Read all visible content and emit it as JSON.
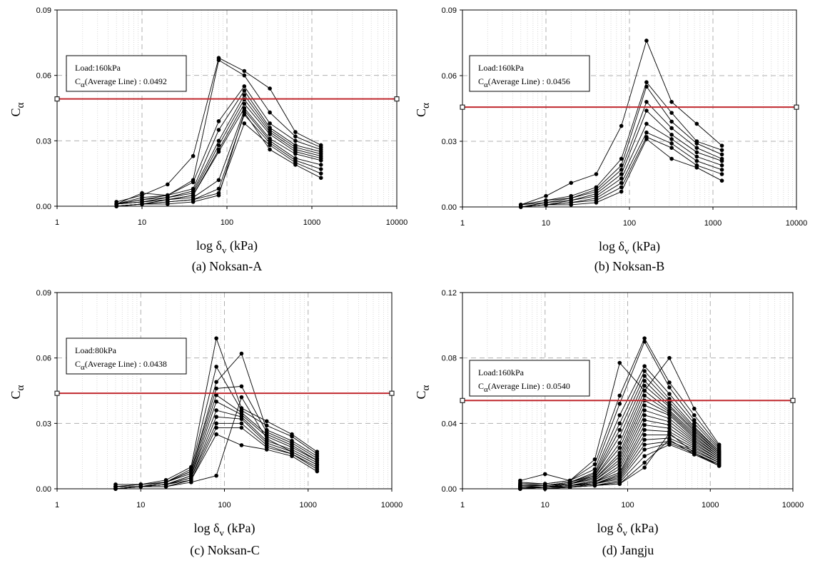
{
  "panels": [
    {
      "caption": "(a) Noksan-A",
      "ylabel_main": "C",
      "ylabel_sub": "α",
      "xlabel_prefix": "log δ",
      "xlabel_sub": "v",
      "xlabel_suffix": " (kPa)",
      "legend_load": "Load:160kPa",
      "legend_c": "C",
      "legend_c_sub": "α",
      "legend_avg": "(Average Line) : 0.0492",
      "chart_data": {
        "type": "line",
        "xscale": "log",
        "xlim": [
          1,
          10000
        ],
        "ylim": [
          0,
          0.09
        ],
        "yticks": [
          "0.00",
          "0.03",
          "0.06",
          "0.09"
        ],
        "xticks": [
          "1",
          "10",
          "100",
          "1000",
          "10000"
        ],
        "grid": true,
        "average_line": 0.0492,
        "x": [
          5,
          10,
          20,
          40,
          80,
          160,
          320,
          640,
          1280
        ],
        "series": [
          {
            "values": [
              0.002,
              0.005,
              0.01,
              0.023,
              0.068,
              0.062,
              0.054,
              0.034,
              0.028
            ]
          },
          {
            "values": [
              0.001,
              0.006,
              0.005,
              0.012,
              0.067,
              0.06,
              0.043,
              0.032,
              0.027
            ]
          },
          {
            "values": [
              0.001,
              0.004,
              0.005,
              0.011,
              0.039,
              0.055,
              0.038,
              0.03,
              0.026
            ]
          },
          {
            "values": [
              0.001,
              0.003,
              0.005,
              0.008,
              0.035,
              0.053,
              0.036,
              0.028,
              0.025
            ]
          },
          {
            "values": [
              0.001,
              0.003,
              0.004,
              0.007,
              0.03,
              0.051,
              0.035,
              0.027,
              0.024
            ]
          },
          {
            "values": [
              0.001,
              0.002,
              0.004,
              0.006,
              0.028,
              0.049,
              0.034,
              0.026,
              0.023
            ]
          },
          {
            "values": [
              0.001,
              0.002,
              0.003,
              0.005,
              0.026,
              0.047,
              0.033,
              0.025,
              0.022
            ]
          },
          {
            "values": [
              0.001,
              0.002,
              0.003,
              0.005,
              0.025,
              0.045,
              0.031,
              0.024,
              0.021
            ]
          },
          {
            "values": [
              0.0,
              0.001,
              0.003,
              0.004,
              0.012,
              0.044,
              0.03,
              0.022,
              0.019
            ]
          },
          {
            "values": [
              0.0,
              0.001,
              0.002,
              0.003,
              0.008,
              0.042,
              0.029,
              0.021,
              0.017
            ]
          },
          {
            "values": [
              0.0,
              0.001,
              0.002,
              0.003,
              0.006,
              0.038,
              0.028,
              0.02,
              0.015
            ]
          },
          {
            "values": [
              0.0,
              0.001,
              0.001,
              0.002,
              0.005,
              0.043,
              0.026,
              0.019,
              0.013
            ]
          }
        ]
      }
    },
    {
      "caption": "(b) Noksan-B",
      "ylabel_main": "C",
      "ylabel_sub": "α",
      "xlabel_prefix": "log δ",
      "xlabel_sub": "v",
      "xlabel_suffix": " (kPa)",
      "legend_load": "Load:160kPa",
      "legend_c": "C",
      "legend_c_sub": "α",
      "legend_avg": "(Average Line) : 0.0456",
      "chart_data": {
        "type": "line",
        "xscale": "log",
        "xlim": [
          1,
          10000
        ],
        "ylim": [
          0,
          0.09
        ],
        "yticks": [
          "0.00",
          "0.03",
          "0.06",
          "0.09"
        ],
        "xticks": [
          "1",
          "10",
          "100",
          "1000",
          "10000"
        ],
        "grid": true,
        "average_line": 0.0456,
        "x": [
          5,
          10,
          20,
          40,
          80,
          160,
          320,
          640,
          1280
        ],
        "series": [
          {
            "values": [
              0.001,
              0.005,
              0.011,
              0.015,
              0.037,
              0.076,
              0.048,
              0.038,
              0.028
            ]
          },
          {
            "values": [
              0.001,
              0.003,
              0.005,
              0.009,
              0.022,
              0.057,
              0.043,
              0.03,
              0.026
            ]
          },
          {
            "values": [
              0.001,
              0.003,
              0.004,
              0.008,
              0.019,
              0.055,
              0.039,
              0.029,
              0.024
            ]
          },
          {
            "values": [
              0.001,
              0.002,
              0.004,
              0.007,
              0.017,
              0.048,
              0.036,
              0.027,
              0.022
            ]
          },
          {
            "values": [
              0.0,
              0.002,
              0.003,
              0.006,
              0.015,
              0.044,
              0.033,
              0.025,
              0.021
            ]
          },
          {
            "values": [
              0.0,
              0.001,
              0.003,
              0.005,
              0.013,
              0.038,
              0.031,
              0.023,
              0.019
            ]
          },
          {
            "values": [
              0.0,
              0.001,
              0.002,
              0.004,
              0.011,
              0.034,
              0.029,
              0.021,
              0.017
            ]
          },
          {
            "values": [
              0.0,
              0.001,
              0.002,
              0.003,
              0.009,
              0.032,
              0.027,
              0.019,
              0.015
            ]
          },
          {
            "values": [
              0.0,
              0.001,
              0.001,
              0.002,
              0.007,
              0.031,
              0.022,
              0.018,
              0.012
            ]
          }
        ]
      }
    },
    {
      "caption": "(c) Noksan-C",
      "ylabel_main": "C",
      "ylabel_sub": "α",
      "xlabel_prefix": "log δ",
      "xlabel_sub": "v",
      "xlabel_suffix": " (kPa)",
      "legend_load": "Load:80kPa",
      "legend_c": "C",
      "legend_c_sub": "α",
      "legend_avg": "(Average Line) : 0.0438",
      "chart_data": {
        "type": "line",
        "xscale": "log",
        "xlim": [
          1,
          10000
        ],
        "ylim": [
          0,
          0.09
        ],
        "yticks": [
          "0.00",
          "0.03",
          "0.06",
          "0.09"
        ],
        "xticks": [
          "1",
          "10",
          "100",
          "1000",
          "10000"
        ],
        "grid": true,
        "average_line": 0.0438,
        "x": [
          5,
          10,
          20,
          40,
          80,
          160,
          320,
          640,
          1280
        ],
        "series": [
          {
            "values": [
              0.002,
              0.002,
              0.004,
              0.01,
              0.069,
              0.037,
              0.031,
              0.025,
              0.017
            ]
          },
          {
            "values": [
              0.001,
              0.002,
              0.003,
              0.009,
              0.056,
              0.036,
              0.029,
              0.024,
              0.016
            ]
          },
          {
            "values": [
              0.001,
              0.002,
              0.003,
              0.008,
              0.049,
              0.062,
              0.027,
              0.022,
              0.015
            ]
          },
          {
            "values": [
              0.001,
              0.001,
              0.003,
              0.008,
              0.046,
              0.047,
              0.026,
              0.021,
              0.014
            ]
          },
          {
            "values": [
              0.001,
              0.001,
              0.003,
              0.007,
              0.043,
              0.035,
              0.025,
              0.02,
              0.013
            ]
          },
          {
            "values": [
              0.001,
              0.001,
              0.002,
              0.006,
              0.04,
              0.034,
              0.024,
              0.019,
              0.013
            ]
          },
          {
            "values": [
              0.001,
              0.001,
              0.002,
              0.006,
              0.036,
              0.033,
              0.022,
              0.018,
              0.012
            ]
          },
          {
            "values": [
              0.0,
              0.001,
              0.002,
              0.005,
              0.033,
              0.032,
              0.021,
              0.017,
              0.011
            ]
          },
          {
            "values": [
              0.0,
              0.001,
              0.002,
              0.005,
              0.03,
              0.03,
              0.02,
              0.016,
              0.01
            ]
          },
          {
            "values": [
              0.0,
              0.001,
              0.002,
              0.004,
              0.028,
              0.028,
              0.019,
              0.016,
              0.009
            ]
          },
          {
            "values": [
              0.0,
              0.001,
              0.001,
              0.004,
              0.025,
              0.02,
              0.018,
              0.015,
              0.008
            ]
          },
          {
            "values": [
              0.0,
              0.001,
              0.001,
              0.003,
              0.006,
              0.042,
              0.023,
              0.017,
              0.011
            ]
          }
        ]
      }
    },
    {
      "caption": "(d) Jangju",
      "ylabel_main": "C",
      "ylabel_sub": "α",
      "xlabel_prefix": "log δ",
      "xlabel_sub": "v",
      "xlabel_suffix": " (kPa)",
      "legend_load": "Load:160kPa",
      "legend_c": "C",
      "legend_c_sub": "α",
      "legend_avg": "(Average Line) : 0.0540",
      "chart_data": {
        "type": "line",
        "xscale": "log",
        "xlim": [
          1,
          10000
        ],
        "ylim": [
          0,
          0.12
        ],
        "yticks": [
          "0.00",
          "0.04",
          "0.08",
          "0.12"
        ],
        "xticks": [
          "1",
          "10",
          "100",
          "1000",
          "10000"
        ],
        "grid": true,
        "average_line": 0.054,
        "x": [
          5,
          10,
          20,
          40,
          80,
          160,
          320,
          640,
          1280
        ],
        "series": [
          {
            "values": [
              0.005,
              0.009,
              0.005,
              0.018,
              0.077,
              0.06,
              0.08,
              0.049,
              0.027
            ]
          },
          {
            "values": [
              0.004,
              0.003,
              0.005,
              0.015,
              0.057,
              0.092,
              0.065,
              0.045,
              0.026
            ]
          },
          {
            "values": [
              0.003,
              0.003,
              0.005,
              0.012,
              0.052,
              0.09,
              0.062,
              0.042,
              0.025
            ]
          },
          {
            "values": [
              0.003,
              0.002,
              0.004,
              0.01,
              0.045,
              0.075,
              0.058,
              0.04,
              0.024
            ]
          },
          {
            "values": [
              0.002,
              0.002,
              0.004,
              0.009,
              0.04,
              0.072,
              0.055,
              0.038,
              0.023
            ]
          },
          {
            "values": [
              0.002,
              0.002,
              0.004,
              0.008,
              0.036,
              0.069,
              0.053,
              0.037,
              0.023
            ]
          },
          {
            "values": [
              0.002,
              0.002,
              0.003,
              0.008,
              0.032,
              0.066,
              0.051,
              0.036,
              0.022
            ]
          },
          {
            "values": [
              0.002,
              0.002,
              0.003,
              0.007,
              0.028,
              0.063,
              0.05,
              0.035,
              0.022
            ]
          },
          {
            "values": [
              0.002,
              0.001,
              0.003,
              0.007,
              0.025,
              0.06,
              0.048,
              0.034,
              0.021
            ]
          },
          {
            "values": [
              0.001,
              0.001,
              0.003,
              0.006,
              0.022,
              0.057,
              0.047,
              0.033,
              0.021
            ]
          },
          {
            "values": [
              0.001,
              0.001,
              0.003,
              0.006,
              0.02,
              0.054,
              0.046,
              0.032,
              0.02
            ]
          },
          {
            "values": [
              0.001,
              0.001,
              0.002,
              0.005,
              0.018,
              0.051,
              0.045,
              0.031,
              0.02
            ]
          },
          {
            "values": [
              0.001,
              0.001,
              0.002,
              0.005,
              0.016,
              0.048,
              0.043,
              0.03,
              0.019
            ]
          },
          {
            "values": [
              0.001,
              0.001,
              0.002,
              0.004,
              0.014,
              0.045,
              0.041,
              0.029,
              0.019
            ]
          },
          {
            "values": [
              0.001,
              0.001,
              0.002,
              0.004,
              0.012,
              0.042,
              0.039,
              0.028,
              0.018
            ]
          },
          {
            "values": [
              0.001,
              0.001,
              0.002,
              0.004,
              0.01,
              0.039,
              0.037,
              0.027,
              0.018
            ]
          },
          {
            "values": [
              0.001,
              0.001,
              0.002,
              0.003,
              0.009,
              0.036,
              0.035,
              0.026,
              0.017
            ]
          },
          {
            "values": [
              0.001,
              0.001,
              0.002,
              0.003,
              0.008,
              0.033,
              0.033,
              0.025,
              0.017
            ]
          },
          {
            "values": [
              0.0,
              0.001,
              0.001,
              0.003,
              0.007,
              0.03,
              0.031,
              0.024,
              0.016
            ]
          },
          {
            "values": [
              0.0,
              0.001,
              0.001,
              0.003,
              0.006,
              0.027,
              0.029,
              0.023,
              0.016
            ]
          },
          {
            "values": [
              0.0,
              0.001,
              0.001,
              0.002,
              0.005,
              0.024,
              0.028,
              0.022,
              0.015
            ]
          },
          {
            "values": [
              0.0,
              0.0,
              0.001,
              0.002,
              0.004,
              0.02,
              0.027,
              0.021,
              0.015
            ]
          },
          {
            "values": [
              0.0,
              0.0,
              0.001,
              0.002,
              0.003,
              0.016,
              0.03,
              0.021,
              0.014
            ]
          },
          {
            "values": [
              0.0,
              0.0,
              0.001,
              0.002,
              0.003,
              0.013,
              0.034,
              0.022,
              0.014
            ]
          }
        ]
      }
    }
  ]
}
